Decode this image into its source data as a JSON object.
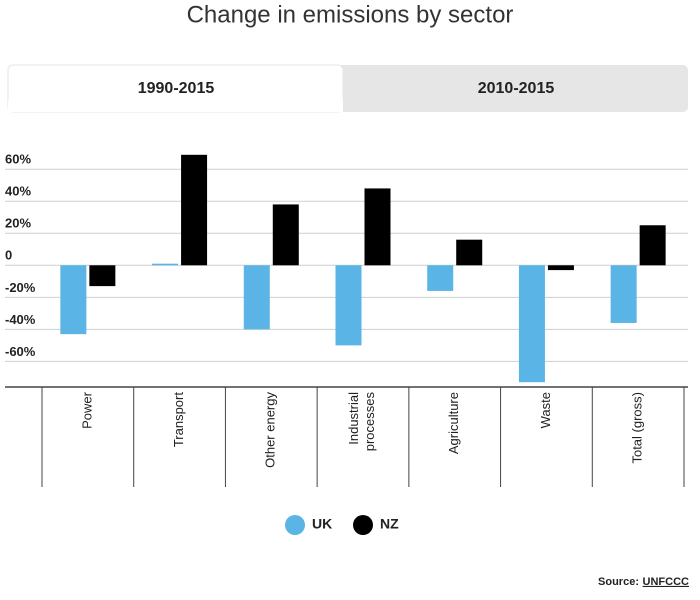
{
  "tabs": [
    "1990-2015",
    "2010-2015"
  ],
  "chart_data": {
    "type": "bar",
    "title": "Change in emissions by sector",
    "categories": [
      "Power",
      "Transport",
      "Other energy",
      "Industrial processes",
      "Agriculture",
      "Waste",
      "Total (gross)"
    ],
    "series": [
      {
        "name": "UK",
        "color": "#5ab4e5",
        "values": [
          -43,
          1,
          -40,
          -50,
          -16,
          -73,
          -36
        ]
      },
      {
        "name": "NZ",
        "color": "#000000",
        "values": [
          -13,
          69,
          38,
          48,
          16,
          -3,
          25
        ]
      }
    ],
    "ylim": [
      -76,
      72
    ],
    "yticks": [
      {
        "value": 60,
        "label": "60%"
      },
      {
        "value": 40,
        "label": "40%"
      },
      {
        "value": 20,
        "label": "20%"
      },
      0,
      {
        "value": -20,
        "label": "-20%"
      },
      {
        "value": -40,
        "label": "-40%"
      },
      {
        "value": -60,
        "label": "-60%"
      }
    ],
    "grid": true,
    "legend": "bottom",
    "source_label": "Source:",
    "source_link": "UNFCCC"
  }
}
